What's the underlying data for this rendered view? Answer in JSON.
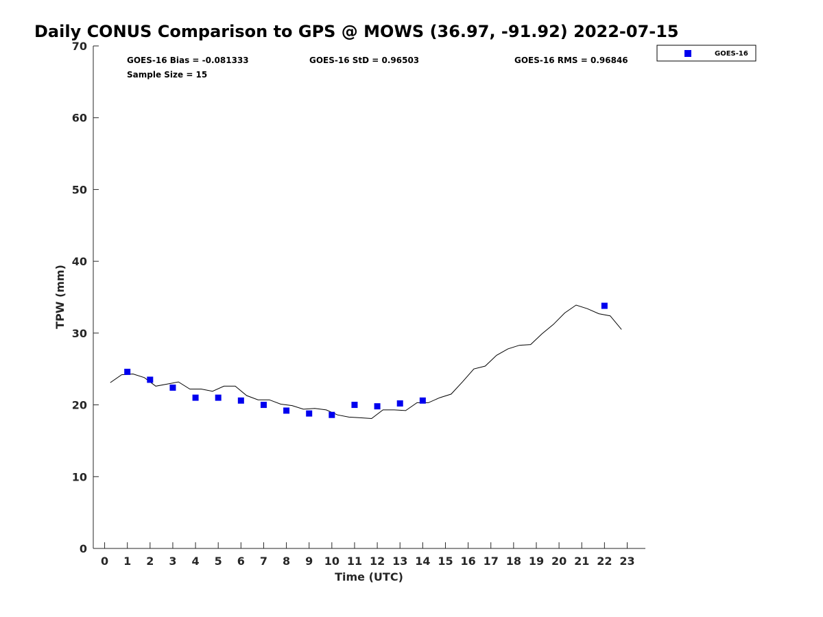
{
  "chart_data": {
    "type": "scatter",
    "title": "Daily CONUS Comparison to GPS @ MOWS (36.97, -91.92) 2022-07-15",
    "xlabel": "Time (UTC)",
    "ylabel": "TPW (mm)",
    "xlim": [
      -0.5,
      23.8
    ],
    "ylim": [
      0,
      70
    ],
    "xticks": [
      "0",
      "1",
      "2",
      "3",
      "4",
      "5",
      "6",
      "7",
      "8",
      "9",
      "10",
      "11",
      "12",
      "13",
      "14",
      "15",
      "16",
      "17",
      "18",
      "19",
      "20",
      "21",
      "22",
      "23"
    ],
    "yticks": [
      "0",
      "10",
      "20",
      "30",
      "40",
      "50",
      "60",
      "70"
    ],
    "grid": false,
    "legend_position": "top-right",
    "stats": {
      "bias": "GOES-16 Bias = -0.081333",
      "std": "GOES-16 StD = 0.96503",
      "rms": "GOES-16 RMS = 0.96846",
      "sample_size": "Sample Size = 15"
    },
    "series": [
      {
        "name": "GOES-16",
        "kind": "scatter",
        "color": "#0000ee",
        "x": [
          1,
          2,
          3,
          4,
          5,
          6,
          7,
          8,
          9,
          10,
          11,
          12,
          13,
          14,
          22
        ],
        "y": [
          24.6,
          23.5,
          22.4,
          21.0,
          21.0,
          20.6,
          20.0,
          19.2,
          18.8,
          18.6,
          20.0,
          19.8,
          20.2,
          20.6,
          33.8
        ]
      },
      {
        "kind": "line",
        "color": "#000000",
        "x": [
          0.25,
          0.75,
          1.25,
          1.75,
          2.25,
          2.75,
          3.25,
          3.75,
          4.25,
          4.75,
          5.25,
          5.75,
          6.25,
          6.75,
          7.25,
          7.75,
          8.25,
          8.75,
          9.25,
          9.75,
          10.25,
          10.75,
          11.25,
          11.75,
          12.25,
          12.75,
          13.25,
          13.75,
          14.25,
          14.75,
          15.25,
          15.75,
          16.25,
          16.75,
          17.25,
          17.75,
          18.25,
          18.75,
          19.25,
          19.75,
          20.25,
          20.75,
          21.25,
          21.75,
          22.25,
          22.75
        ],
        "y": [
          23.1,
          24.2,
          24.3,
          23.8,
          22.6,
          22.9,
          23.2,
          22.2,
          22.2,
          21.9,
          22.6,
          22.6,
          21.3,
          20.7,
          20.7,
          20.1,
          19.9,
          19.4,
          19.5,
          19.3,
          18.6,
          18.3,
          18.2,
          18.1,
          19.3,
          19.3,
          19.2,
          20.3,
          20.3,
          21.0,
          21.5,
          23.2,
          25.0,
          25.4,
          26.9,
          27.8,
          28.3,
          28.4,
          29.9,
          31.2,
          32.8,
          33.9,
          33.4,
          32.7,
          32.4,
          30.5
        ]
      }
    ]
  }
}
